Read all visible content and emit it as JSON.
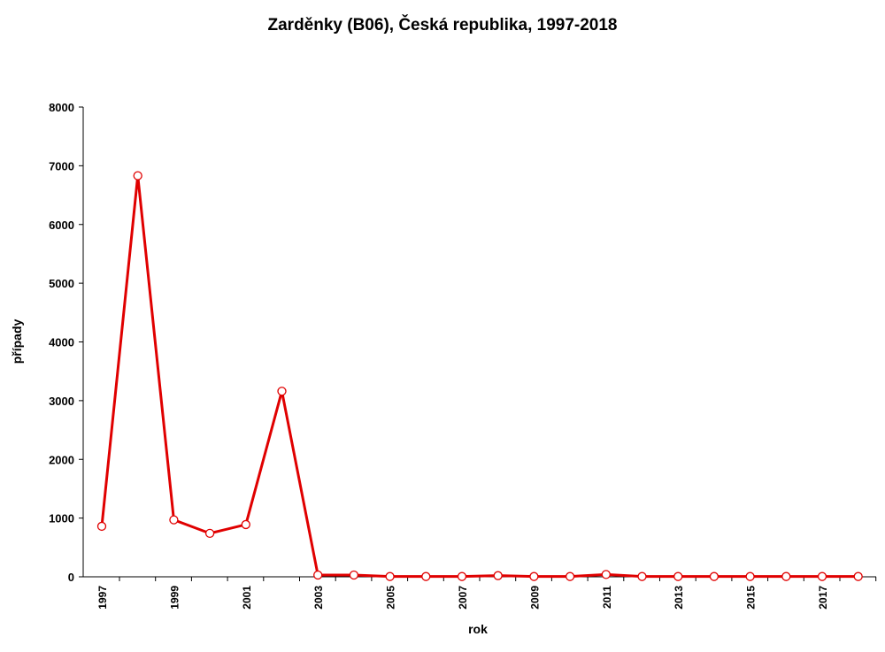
{
  "chart_data": {
    "type": "line",
    "title": "Zarděnky (B06), Česká republika, 1997-2018",
    "xlabel": "rok",
    "ylabel": "případy",
    "ylim": [
      0,
      8000
    ],
    "yticks": [
      0,
      1000,
      2000,
      3000,
      4000,
      5000,
      6000,
      7000,
      8000
    ],
    "xtick_labels": [
      "1997",
      "1999",
      "2001",
      "2003",
      "2005",
      "2007",
      "2009",
      "2011",
      "2013",
      "2015",
      "2017"
    ],
    "x": [
      1997,
      1998,
      1999,
      2000,
      2001,
      2002,
      2003,
      2004,
      2005,
      2006,
      2007,
      2008,
      2009,
      2010,
      2011,
      2012,
      2013,
      2014,
      2015,
      2016,
      2017,
      2018
    ],
    "series": [
      {
        "values": [
          860,
          6830,
          970,
          740,
          890,
          3160,
          30,
          30,
          5,
          5,
          5,
          20,
          5,
          5,
          40,
          5,
          5,
          5,
          5,
          5,
          5,
          5
        ]
      }
    ],
    "grid": false,
    "legend": "none",
    "colors": {
      "line": "#e00000",
      "marker_fill": "#ffffff",
      "axis": "#000000"
    }
  }
}
